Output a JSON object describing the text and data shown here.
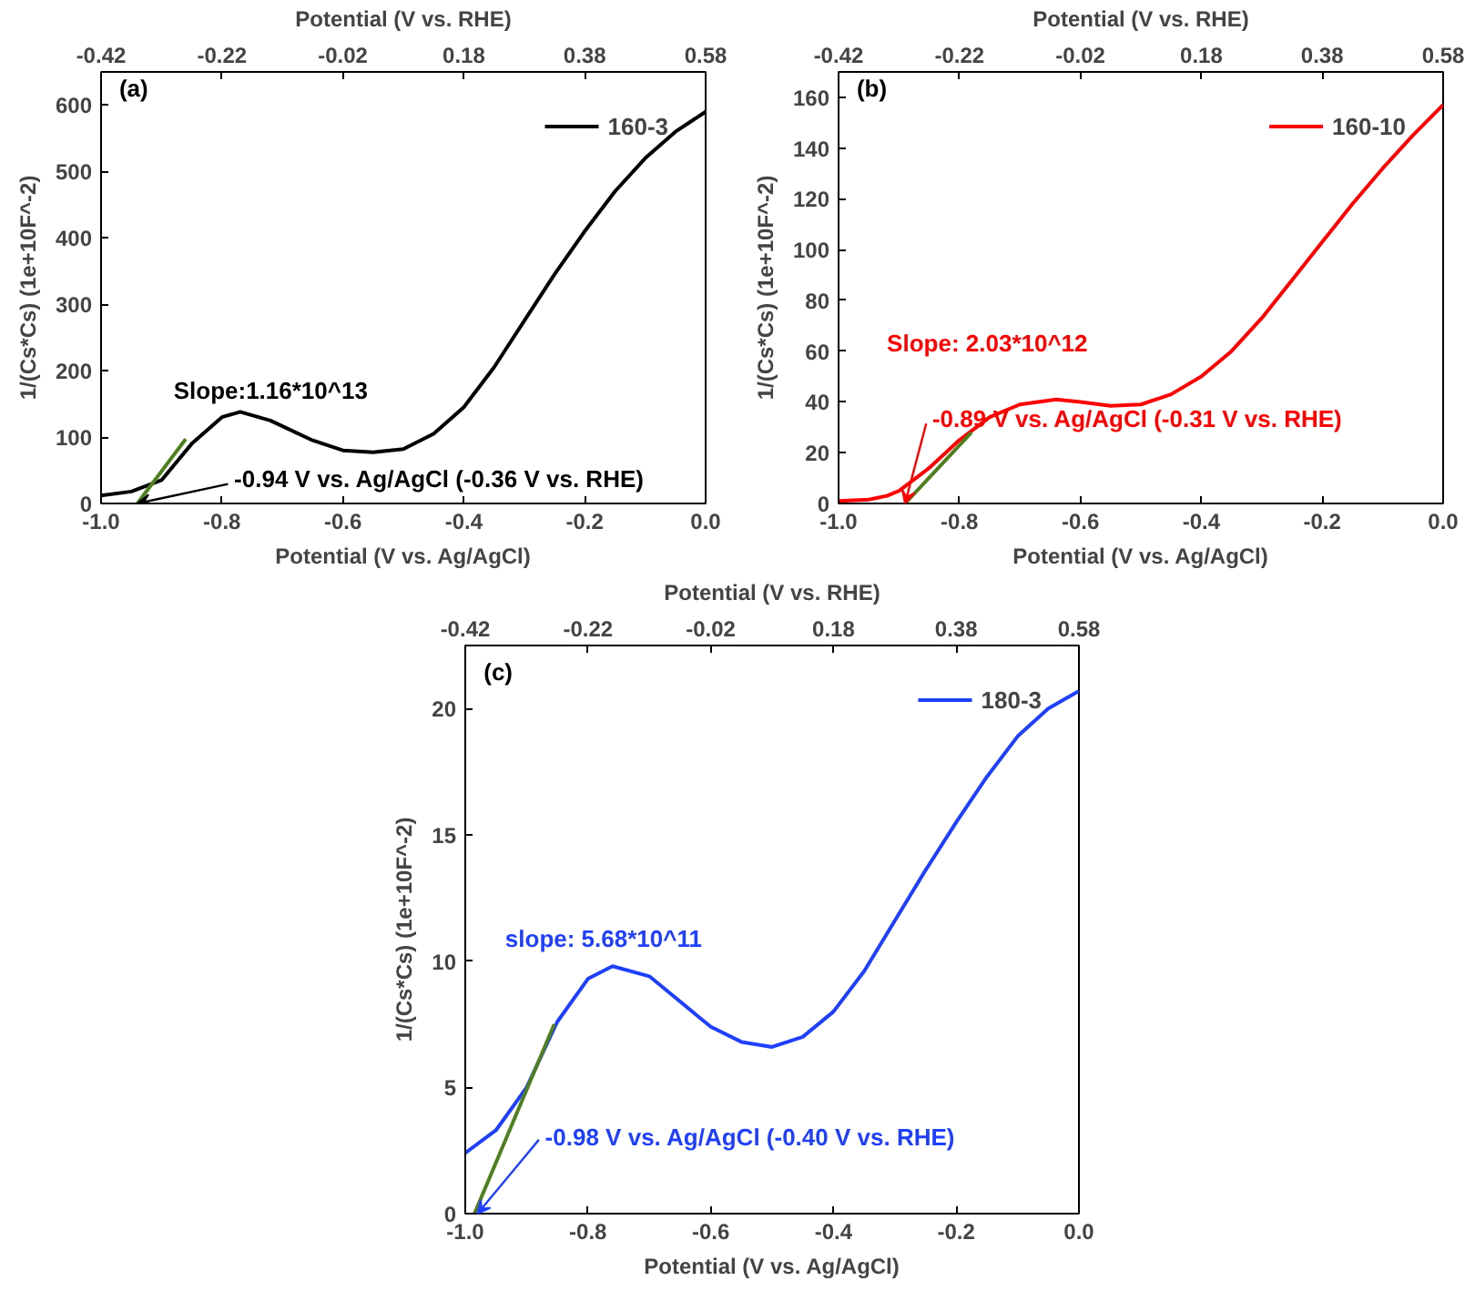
{
  "chart_data": [
    {
      "type": "line",
      "xlabel": "Potential (V vs. Ag/AgCl)",
      "x2label": "Potential (V vs. RHE)",
      "ylabel": "1/(Cs*Cs) (1e+10F^-2)",
      "xlim": [
        -1.0,
        0.0
      ],
      "xticks": [
        {
          "value": -1.0,
          "label": "-1.0"
        },
        {
          "value": -0.8,
          "label": "-0.8"
        },
        {
          "value": -0.6,
          "label": "-0.6"
        },
        {
          "value": -0.4,
          "label": "-0.4"
        },
        {
          "value": -0.2,
          "label": "-0.2"
        },
        {
          "value": 0.0,
          "label": "0.0"
        }
      ],
      "x2lim": [
        -0.42,
        0.58
      ],
      "x2ticks": [
        -0.42,
        -0.22,
        -0.02,
        0.18,
        0.38,
        0.58
      ],
      "ylim": [
        0,
        650
      ],
      "yticks": [
        0,
        100,
        200,
        300,
        400,
        500,
        600
      ],
      "legend": "top right",
      "grid": false,
      "x": [
        -1.0,
        -0.95,
        -0.9,
        -0.85,
        -0.8,
        -0.77,
        -0.72,
        -0.65,
        -0.6,
        -0.55,
        -0.5,
        -0.45,
        -0.4,
        -0.35,
        -0.3,
        -0.25,
        -0.2,
        -0.15,
        -0.1,
        -0.05,
        0.0
      ],
      "series": [
        {
          "name": "160-3",
          "color": "#000000",
          "values": [
            12,
            18,
            35,
            90,
            130,
            138,
            125,
            95,
            80,
            77,
            82,
            105,
            145,
            205,
            275,
            345,
            410,
            470,
            520,
            560,
            590
          ]
        },
        {
          "type": "line",
          "color": "#4f7f1f",
          "x": [
            -0.94,
            -0.86
          ],
          "values": [
            0,
            97
          ]
        }
      ],
      "annotations": [
        "(a)",
        "Slope:1.16*10^13",
        {
          "text": "-0.94 V vs. Ag/AgCl (-0.36 V vs. RHE)",
          "x": -0.94,
          "y": 0
        }
      ]
    },
    {
      "type": "line",
      "xlabel": "Potential (V vs. Ag/AgCl)",
      "x2label": "Potential (V vs. RHE)",
      "ylabel": "1/(Cs*Cs) (1e+10F^-2)",
      "xlim": [
        -1.0,
        0.0
      ],
      "xticks": [
        {
          "value": -1.0,
          "label": "-1.0"
        },
        {
          "value": -0.8,
          "label": "-0.8"
        },
        {
          "value": -0.6,
          "label": "-0.6"
        },
        {
          "value": -0.4,
          "label": "-0.4"
        },
        {
          "value": -0.2,
          "label": "-0.2"
        },
        {
          "value": 0.0,
          "label": "0.0"
        }
      ],
      "x2lim": [
        -0.42,
        0.58
      ],
      "x2ticks": [
        -0.42,
        -0.22,
        -0.02,
        0.18,
        0.38,
        0.58
      ],
      "ylim": [
        0,
        170
      ],
      "yticks": [
        0,
        20,
        40,
        60,
        80,
        100,
        120,
        140,
        160
      ],
      "legend": "top right",
      "grid": false,
      "x": [
        -1.0,
        -0.95,
        -0.92,
        -0.9,
        -0.85,
        -0.8,
        -0.75,
        -0.7,
        -0.64,
        -0.6,
        -0.55,
        -0.5,
        -0.45,
        -0.4,
        -0.35,
        -0.3,
        -0.25,
        -0.2,
        -0.15,
        -0.1,
        -0.05,
        0.0
      ],
      "series": [
        {
          "name": "160-10",
          "color": "#ff0000",
          "values": [
            1,
            1.5,
            3,
            5,
            14,
            25,
            34,
            39,
            41,
            40,
            38.5,
            39,
            43,
            50,
            60,
            73,
            88,
            103,
            118,
            132,
            145,
            157
          ]
        },
        {
          "type": "line",
          "color": "#4f7f1f",
          "x": [
            -0.89,
            -0.78
          ],
          "values": [
            0,
            28
          ]
        }
      ],
      "annotations": [
        "(b)",
        "Slope: 2.03*10^12",
        {
          "text": "-0.89 V vs. Ag/AgCl (-0.31 V vs. RHE)",
          "x": -0.89,
          "y": 0
        }
      ]
    },
    {
      "type": "line",
      "xlabel": "Potential (V vs. Ag/AgCl)",
      "x2label": "Potential (V vs. RHE)",
      "ylabel": "1/(Cs*Cs) (1e+10F^-2)",
      "xlim": [
        -1.0,
        0.0
      ],
      "xticks": [
        {
          "value": -1.0,
          "label": "-1.0"
        },
        {
          "value": -0.8,
          "label": "-0.8"
        },
        {
          "value": -0.6,
          "label": "-0.6"
        },
        {
          "value": -0.4,
          "label": "-0.4"
        },
        {
          "value": -0.2,
          "label": "-0.2"
        },
        {
          "value": 0.0,
          "label": "0.0"
        }
      ],
      "x2lim": [
        -0.42,
        0.58
      ],
      "x2ticks": [
        -0.42,
        -0.22,
        -0.02,
        0.18,
        0.38,
        0.58
      ],
      "ylim": [
        0,
        22.5
      ],
      "yticks": [
        0,
        5,
        10,
        15,
        20
      ],
      "legend": "top right",
      "grid": false,
      "x": [
        -1.0,
        -0.95,
        -0.9,
        -0.85,
        -0.8,
        -0.76,
        -0.7,
        -0.65,
        -0.6,
        -0.55,
        -0.5,
        -0.45,
        -0.4,
        -0.35,
        -0.3,
        -0.25,
        -0.2,
        -0.15,
        -0.1,
        -0.05,
        0.0
      ],
      "series": [
        {
          "name": "180-3",
          "color": "#1f3fff",
          "values": [
            2.4,
            3.3,
            5,
            7.6,
            9.3,
            9.8,
            9.4,
            8.4,
            7.4,
            6.8,
            6.6,
            7.0,
            8.0,
            9.6,
            11.6,
            13.6,
            15.5,
            17.3,
            18.9,
            20.0,
            20.7
          ]
        },
        {
          "type": "line",
          "color": "#4f7f1f",
          "x": [
            -0.985,
            -0.855
          ],
          "values": [
            0,
            7.5
          ]
        }
      ],
      "annotations": [
        "(c)",
        "slope: 5.68*10^11",
        {
          "text": "-0.98 V vs. Ag/AgCl (-0.40 V vs. RHE)",
          "x": -0.98,
          "y": 0
        }
      ]
    }
  ]
}
